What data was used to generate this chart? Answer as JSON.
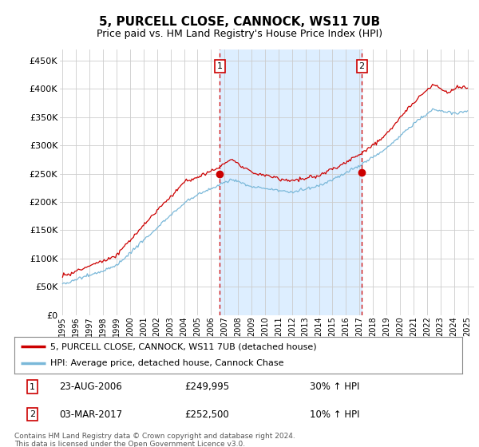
{
  "title": "5, PURCELL CLOSE, CANNOCK, WS11 7UB",
  "subtitle": "Price paid vs. HM Land Registry's House Price Index (HPI)",
  "ytick_values": [
    0,
    50000,
    100000,
    150000,
    200000,
    250000,
    300000,
    350000,
    400000,
    450000
  ],
  "ylim": [
    0,
    470000
  ],
  "xlim_start": 1994.8,
  "xlim_end": 2025.5,
  "xtick_years": [
    1995,
    1996,
    1997,
    1998,
    1999,
    2000,
    2001,
    2002,
    2003,
    2004,
    2005,
    2006,
    2007,
    2008,
    2009,
    2010,
    2011,
    2012,
    2013,
    2014,
    2015,
    2016,
    2017,
    2018,
    2019,
    2020,
    2021,
    2022,
    2023,
    2024,
    2025
  ],
  "hpi_color": "#7ab8d9",
  "price_color": "#cc0000",
  "shade_color": "#ddeeff",
  "sale1_x": 2006.645,
  "sale1_y": 249995,
  "sale2_x": 2017.17,
  "sale2_y": 252500,
  "legend_entry1": "5, PURCELL CLOSE, CANNOCK, WS11 7UB (detached house)",
  "legend_entry2": "HPI: Average price, detached house, Cannock Chase",
  "table_row1": [
    "1",
    "23-AUG-2006",
    "£249,995",
    "30% ↑ HPI"
  ],
  "table_row2": [
    "2",
    "03-MAR-2017",
    "£252,500",
    "10% ↑ HPI"
  ],
  "footer": "Contains HM Land Registry data © Crown copyright and database right 2024.\nThis data is licensed under the Open Government Licence v3.0.",
  "background_color": "#ffffff",
  "grid_color": "#cccccc",
  "vline_color": "#cc0000"
}
